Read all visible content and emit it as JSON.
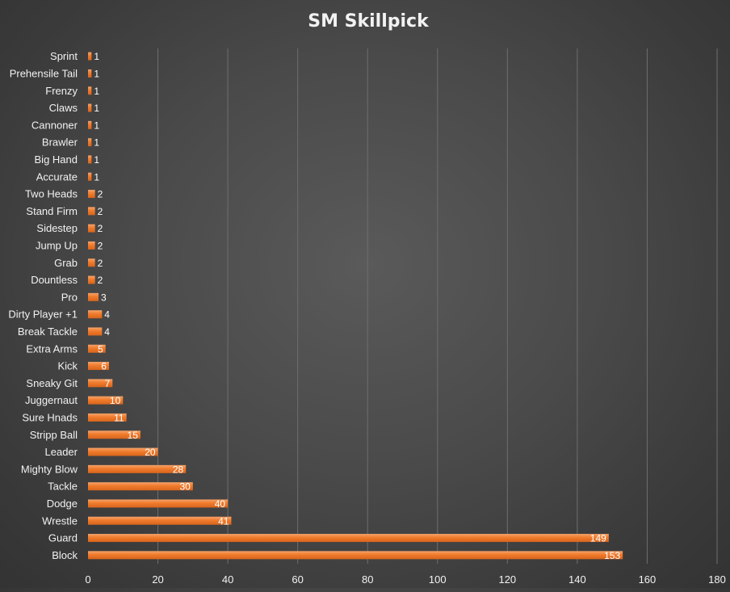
{
  "chart_data": {
    "type": "bar",
    "orientation": "horizontal",
    "title": "SM Skillpick",
    "xlabel": "",
    "ylabel": "",
    "xlim": [
      0,
      180
    ],
    "xticks": [
      0,
      20,
      40,
      60,
      80,
      100,
      120,
      140,
      160,
      180
    ],
    "grid": "vertical",
    "data_labels": true,
    "bar_color": "#f07b2c",
    "categories": [
      "Block",
      "Guard",
      "Wrestle",
      "Dodge",
      "Tackle",
      "Mighty Blow",
      "Leader",
      "Stripp Ball",
      "Sure Hnads",
      "Juggernaut",
      "Sneaky Git",
      "Kick",
      "Extra Arms",
      "Break Tackle",
      "Dirty Player +1",
      "Pro",
      "Dountless",
      "Grab",
      "Jump Up",
      "Sidestep",
      "Stand Firm",
      "Two Heads",
      "Accurate",
      "Big Hand",
      "Brawler",
      "Cannoner",
      "Claws",
      "Frenzy",
      "Prehensile Tail",
      "Sprint"
    ],
    "values": [
      153,
      149,
      41,
      40,
      30,
      28,
      20,
      15,
      11,
      10,
      7,
      6,
      5,
      4,
      4,
      3,
      2,
      2,
      2,
      2,
      2,
      2,
      1,
      1,
      1,
      1,
      1,
      1,
      1,
      1
    ]
  }
}
